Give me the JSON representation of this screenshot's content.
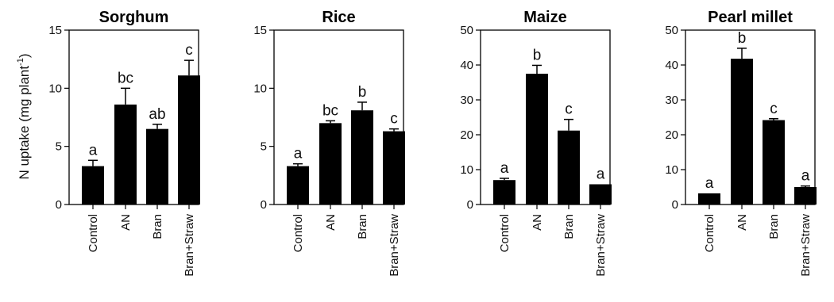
{
  "y_axis_title": "N uptake (mg  plant",
  "y_axis_superscript": "-1",
  "y_axis_close": ")",
  "chart_data": [
    {
      "type": "bar",
      "title": "Sorghum",
      "categories": [
        "Control",
        "AN",
        "Bran",
        "Bran+Straw"
      ],
      "values": [
        3.3,
        8.6,
        6.5,
        11.1
      ],
      "error": [
        0.5,
        1.4,
        0.4,
        1.3
      ],
      "significance": [
        "a",
        "bc",
        "ab",
        "c"
      ],
      "ylim": [
        0,
        15
      ],
      "yticks": [
        "0",
        "5",
        "10",
        "15"
      ],
      "ytick_values": [
        0,
        5,
        10,
        15
      ]
    },
    {
      "type": "bar",
      "title": "Rice",
      "categories": [
        "Control",
        "AN",
        "Bran",
        "Bran+Straw"
      ],
      "values": [
        3.3,
        7.0,
        8.1,
        6.3
      ],
      "error": [
        0.2,
        0.2,
        0.7,
        0.2
      ],
      "significance": [
        "a",
        "bc",
        "b",
        "c"
      ],
      "ylim": [
        0,
        15
      ],
      "yticks": [
        "0",
        "5",
        "10",
        "15"
      ],
      "ytick_values": [
        0,
        5,
        10,
        15
      ]
    },
    {
      "type": "bar",
      "title": "Maize",
      "categories": [
        "Control",
        "AN",
        "Bran",
        "Bran+Straw"
      ],
      "values": [
        7.0,
        37.5,
        21.2,
        5.8
      ],
      "error": [
        0.5,
        2.4,
        3.2,
        0.0
      ],
      "significance": [
        "a",
        "b",
        "c",
        "a"
      ],
      "ylim": [
        0,
        50
      ],
      "yticks": [
        "0",
        "10",
        "20",
        "30",
        "40",
        "50"
      ],
      "ytick_values": [
        0,
        10,
        20,
        30,
        40,
        50
      ]
    },
    {
      "type": "bar",
      "title": "Pearl millet",
      "categories": [
        "Control",
        "AN",
        "Bran",
        "Bran+Straw"
      ],
      "values": [
        3.2,
        41.8,
        24.2,
        5.0
      ],
      "error": [
        0.0,
        3.0,
        0.4,
        0.3
      ],
      "significance": [
        "a",
        "b",
        "c",
        "a"
      ],
      "ylim": [
        0,
        50
      ],
      "yticks": [
        "0",
        "10",
        "20",
        "30",
        "40",
        "50"
      ],
      "ytick_values": [
        0,
        10,
        20,
        30,
        40,
        50
      ]
    }
  ]
}
